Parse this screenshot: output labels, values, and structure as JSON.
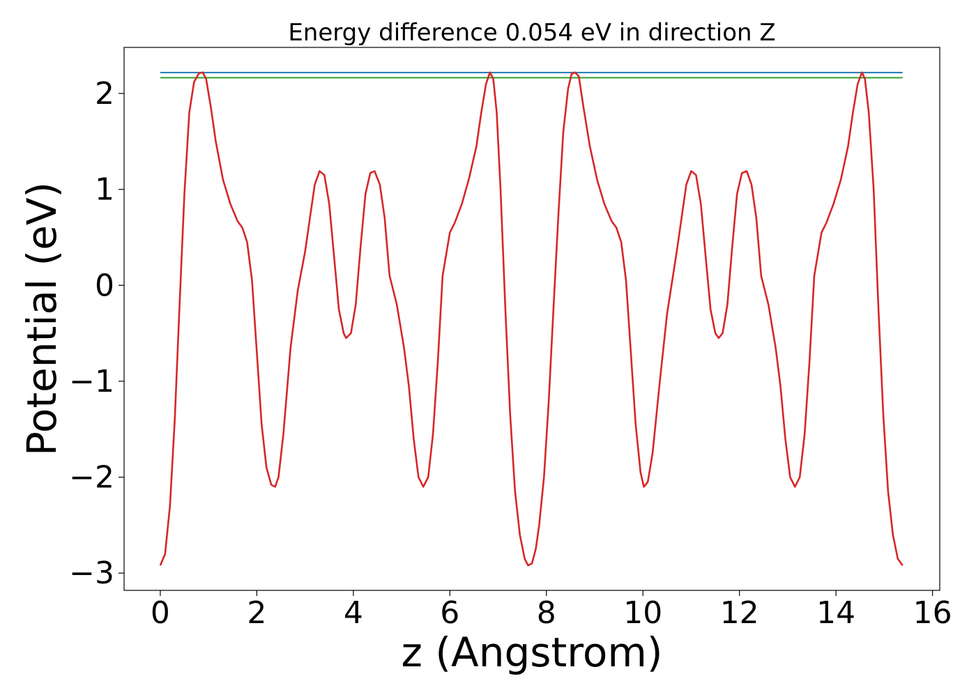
{
  "chart_data": {
    "type": "line",
    "title": "Energy difference 0.054 eV in direction Z",
    "xlabel": "z (Angstrom)",
    "ylabel": "Potential (eV)",
    "xlim": [
      -0.75,
      16.15
    ],
    "ylim": [
      -3.18,
      2.48
    ],
    "xticks": [
      0,
      2,
      4,
      6,
      8,
      10,
      12,
      14,
      16
    ],
    "xtick_labels": [
      "0",
      "2",
      "4",
      "6",
      "8",
      "10",
      "12",
      "14",
      "16"
    ],
    "yticks": [
      -3,
      -2,
      -1,
      0,
      1,
      2
    ],
    "ytick_labels": [
      "−3",
      "−2",
      "−1",
      "0",
      "1",
      "2"
    ],
    "grid": false,
    "series": [
      {
        "color": "#d62728",
        "x": [
          0.0,
          0.1,
          0.2,
          0.3,
          0.4,
          0.5,
          0.6,
          0.7,
          0.8,
          0.88,
          0.95,
          1.05,
          1.15,
          1.3,
          1.45,
          1.6,
          1.7,
          1.8,
          1.9,
          2.0,
          2.1,
          2.2,
          2.3,
          2.38,
          2.45,
          2.55,
          2.7,
          2.85,
          3.0,
          3.1,
          3.2,
          3.3,
          3.4,
          3.5,
          3.6,
          3.7,
          3.8,
          3.85,
          3.95,
          4.05,
          4.15,
          4.25,
          4.35,
          4.44,
          4.55,
          4.65,
          4.75,
          4.9,
          5.05,
          5.15,
          5.25,
          5.35,
          5.45,
          5.55,
          5.65,
          5.75,
          5.85,
          6.0,
          6.1,
          6.25,
          6.4,
          6.55,
          6.65,
          6.75,
          6.83,
          6.9,
          6.97,
          7.05,
          7.15,
          7.25,
          7.35,
          7.45,
          7.55,
          7.62,
          7.7,
          7.78,
          7.85,
          7.95,
          8.05,
          8.15,
          8.25,
          8.35,
          8.45,
          8.52,
          8.59,
          8.67,
          8.77,
          8.9,
          9.05,
          9.2,
          9.35,
          9.45,
          9.55,
          9.65,
          9.75,
          9.85,
          9.95,
          10.02,
          10.1,
          10.2,
          10.35,
          10.5,
          10.7,
          10.8,
          10.9,
          11.0,
          11.1,
          11.2,
          11.3,
          11.4,
          11.5,
          11.57,
          11.65,
          11.75,
          11.85,
          11.95,
          12.05,
          12.15,
          12.25,
          12.35,
          12.45,
          12.6,
          12.75,
          12.85,
          12.95,
          13.05,
          13.15,
          13.25,
          13.35,
          13.45,
          13.55,
          13.7,
          13.8,
          13.95,
          14.1,
          14.25,
          14.35,
          14.45,
          14.54,
          14.6,
          14.68,
          14.78,
          14.88,
          14.98,
          15.08,
          15.18,
          15.28,
          15.38
        ],
        "y": [
          -2.92,
          -2.8,
          -2.3,
          -1.4,
          -0.2,
          0.95,
          1.8,
          2.12,
          2.21,
          2.22,
          2.15,
          1.85,
          1.5,
          1.1,
          0.85,
          0.67,
          0.6,
          0.45,
          0.05,
          -0.7,
          -1.45,
          -1.9,
          -2.08,
          -2.1,
          -2.0,
          -1.55,
          -0.65,
          -0.05,
          0.35,
          0.7,
          1.05,
          1.19,
          1.15,
          0.85,
          0.3,
          -0.25,
          -0.5,
          -0.55,
          -0.5,
          -0.2,
          0.4,
          0.95,
          1.17,
          1.19,
          1.05,
          0.7,
          0.1,
          -0.2,
          -0.65,
          -1.05,
          -1.6,
          -2.0,
          -2.1,
          -2.0,
          -1.55,
          -0.8,
          0.1,
          0.55,
          0.65,
          0.85,
          1.12,
          1.45,
          1.8,
          2.1,
          2.22,
          2.15,
          1.8,
          1.0,
          -0.25,
          -1.35,
          -2.15,
          -2.6,
          -2.85,
          -2.92,
          -2.9,
          -2.75,
          -2.5,
          -2.0,
          -1.2,
          -0.2,
          0.75,
          1.6,
          2.05,
          2.2,
          2.22,
          2.18,
          1.85,
          1.45,
          1.1,
          0.85,
          0.67,
          0.6,
          0.45,
          0.05,
          -0.7,
          -1.45,
          -1.95,
          -2.1,
          -2.05,
          -1.75,
          -1.0,
          -0.3,
          0.35,
          0.7,
          1.05,
          1.19,
          1.15,
          0.85,
          0.3,
          -0.25,
          -0.5,
          -0.55,
          -0.5,
          -0.2,
          0.4,
          0.95,
          1.17,
          1.19,
          1.05,
          0.7,
          0.1,
          -0.2,
          -0.65,
          -1.05,
          -1.6,
          -2.0,
          -2.1,
          -2.0,
          -1.55,
          -0.8,
          0.1,
          0.55,
          0.65,
          0.85,
          1.1,
          1.45,
          1.8,
          2.1,
          2.22,
          2.15,
          1.8,
          1.0,
          -0.25,
          -1.35,
          -2.15,
          -2.6,
          -2.85,
          -2.92
        ]
      },
      {
        "color": "#1f77b4",
        "x": [
          0.0,
          15.38
        ],
        "y": [
          2.218,
          2.218
        ]
      },
      {
        "color": "#2ca02c",
        "x": [
          0.0,
          15.38
        ],
        "y": [
          2.164,
          2.164
        ]
      }
    ]
  }
}
